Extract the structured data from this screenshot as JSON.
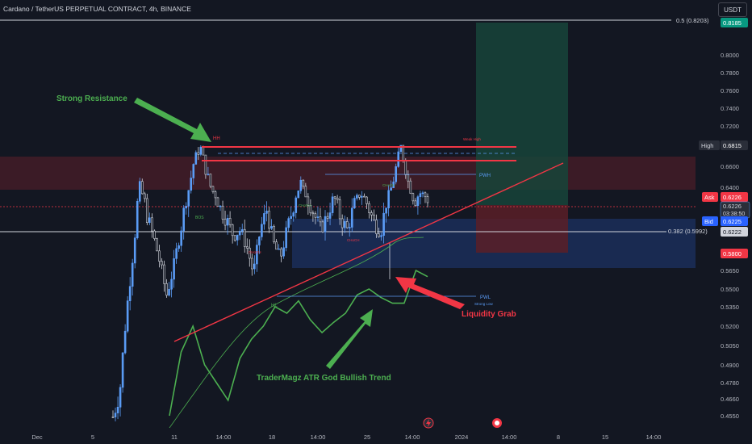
{
  "header": {
    "title": "Cardano / TetherUS PERPETUAL CONTRACT, 4h, BINANCE",
    "currency": "USDT"
  },
  "chart_data": {
    "type": "line",
    "symbol": "ADAUSDT",
    "timeframe": "4h",
    "x_ticks": [
      "Dec",
      "5",
      "11",
      "14:00",
      "18",
      "14:00",
      "25",
      "14:00",
      "2024",
      "14:00",
      "8",
      "15",
      "14:00"
    ],
    "y_ticks": [
      "0.8000",
      "0.7800",
      "0.7600",
      "0.7400",
      "0.7200",
      "0.7000",
      "0.6600",
      "0.6400",
      "0.5650",
      "0.5500",
      "0.5350",
      "0.5200",
      "0.5050",
      "0.4900",
      "0.4780",
      "0.4660",
      "0.4550"
    ],
    "ylim": [
      0.45,
      0.83
    ],
    "series": [
      {
        "name": "",
        "values": [
          0.454,
          0.47,
          0.53,
          0.58,
          0.64,
          0.612,
          0.595,
          0.572,
          0.545,
          0.566,
          0.597,
          0.625,
          0.662,
          0.681,
          0.653,
          0.632,
          0.616,
          0.607,
          0.595,
          0.6,
          0.585,
          0.562,
          0.6,
          0.615,
          0.588,
          0.575,
          0.6,
          0.618,
          0.645,
          0.624,
          0.612,
          0.6,
          0.61,
          0.625,
          0.608,
          0.6,
          0.618,
          0.63,
          0.618,
          0.605,
          0.598,
          0.625,
          0.65,
          0.681,
          0.648,
          0.62,
          0.632,
          0.6226
        ]
      },
      {
        "name": "TraderMagz ATR God Bullish Trend",
        "values": [
          0.455,
          0.5,
          0.52,
          0.49,
          0.478,
          0.465,
          0.495,
          0.51,
          0.52,
          0.535,
          0.53,
          0.54,
          0.525,
          0.515,
          0.523,
          0.53,
          0.545,
          0.55,
          0.543,
          0.538,
          0.538,
          0.565,
          0.56
        ]
      }
    ],
    "levels": {
      "fib_050": "0.5 (0.8203)",
      "fib_0382": "0.382 (0.5992)",
      "high": 0.6815,
      "ask": 0.6226,
      "bid": 0.6225,
      "last": 0.6226,
      "target": 0.8185,
      "stop": 0.58,
      "fib_price": 0.6222
    }
  },
  "price_tags": {
    "target_value": "0.8185",
    "high_label": "High",
    "high_value": "0.6815",
    "ask_label": "Ask",
    "ask_value": "0.6226",
    "last_value": "0.6226",
    "countdown": "03:38:50",
    "bid_label": "Bid",
    "bid_value": "0.6225",
    "fib_price_value": "0.6222",
    "stop_value": "0.5800"
  },
  "annotations": {
    "strong_resistance": "Strong Resistance",
    "liquidity_grab": "Liquidity Grab",
    "indicator_label": "TraderMagz ATR God Bullish Trend",
    "hh": "HH",
    "hl": "HL",
    "weak_high": "Weak High",
    "strong_low": "Strong Low",
    "pwh": "PWH",
    "pwl": "PWL",
    "bos": "BOS",
    "choch1": "CHoCH",
    "choch2": "CHoCH",
    "choch3": "CHoCH",
    "choch4": "CHoCH"
  },
  "colors": {
    "background": "#131722",
    "up": "#5b9cf6",
    "indicator": "#4caf50",
    "resistance": "#f23645",
    "annotation_green": "#4caf50",
    "annotation_red": "#f23645"
  }
}
